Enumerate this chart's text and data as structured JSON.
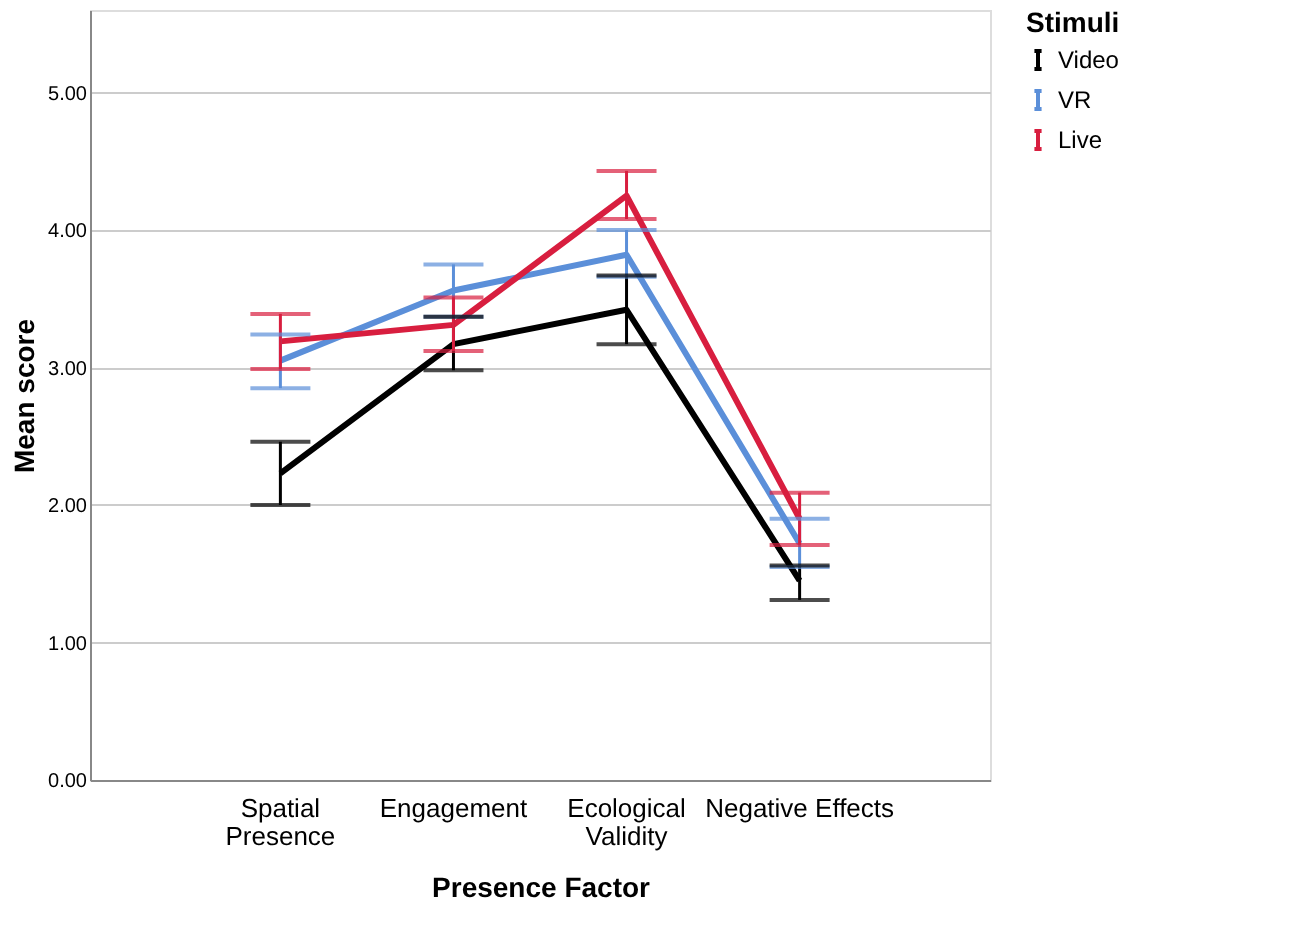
{
  "chart_data": {
    "type": "line",
    "xlabel": "Presence Factor",
    "ylabel": "Mean score",
    "legend_title": "Stimuli",
    "categories": [
      "Spatial\nPresence",
      "Engagement",
      "Ecological\nValidity",
      "Negative Effects"
    ],
    "series": [
      {
        "name": "Video",
        "color": "#000000",
        "values": [
          2.23,
          3.17,
          3.42,
          1.45
        ],
        "errors": [
          [
            2.0,
            2.46
          ],
          [
            2.98,
            3.37
          ],
          [
            3.17,
            3.67
          ],
          [
            1.31,
            1.56
          ]
        ]
      },
      {
        "name": "VR",
        "color": "#5b8fd9",
        "values": [
          3.05,
          3.56,
          3.82,
          1.72
        ],
        "errors": [
          [
            2.85,
            3.24
          ],
          [
            3.37,
            3.75
          ],
          [
            3.66,
            4.0
          ],
          [
            1.55,
            1.9
          ]
        ]
      },
      {
        "name": "Live",
        "color": "#d81e3f",
        "values": [
          3.19,
          3.31,
          4.25,
          1.9
        ],
        "errors": [
          [
            2.99,
            3.39
          ],
          [
            3.12,
            3.51
          ],
          [
            4.08,
            4.43
          ],
          [
            1.71,
            2.09
          ]
        ]
      }
    ],
    "ylim": [
      0,
      5.6
    ],
    "yticks": [
      {
        "value": 0,
        "label": "0.00"
      },
      {
        "value": 1,
        "label": "1.00"
      },
      {
        "value": 2,
        "label": "2.00"
      },
      {
        "value": 3,
        "label": "3.00"
      },
      {
        "value": 4,
        "label": "4.00"
      },
      {
        "value": 5,
        "label": "5.00"
      }
    ],
    "grid": "y",
    "legend": "top right",
    "marker": "none",
    "line_style": "solid"
  }
}
